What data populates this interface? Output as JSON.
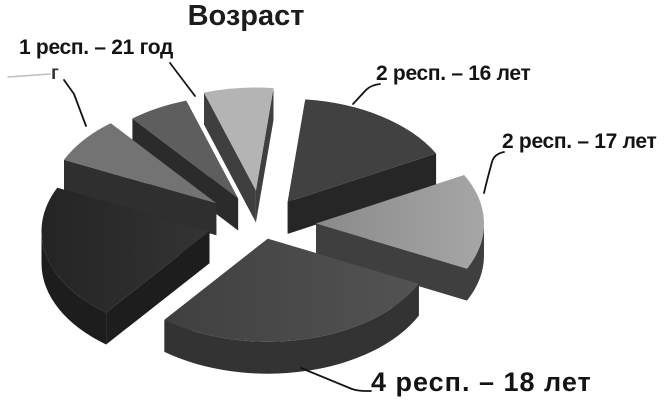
{
  "chart_data": {
    "type": "pie",
    "style": "3d-exploded-grayscale",
    "title": "Возраст",
    "legend": "none",
    "slices": [
      {
        "label": "1 респ. – 21 год",
        "value": 1,
        "color": "#b4b4b4",
        "side_color": "#3f3f3f"
      },
      {
        "label": "2 респ. – 16 лет",
        "value": 2,
        "color": "#414141",
        "side_color": "#262626"
      },
      {
        "label": "2 респ. – 17 лет",
        "value": 2,
        "color": "#9c9c9c",
        "side_color": "#3f3f3f"
      },
      {
        "label": "4 респ. – 18 лет",
        "value": 4,
        "color": "#4c4c4c",
        "side_color": "#333333"
      },
      {
        "label": "",
        "value": 3,
        "color": "#2d2d2d",
        "side_color": "#1d1d1d"
      },
      {
        "label": "",
        "value": 1,
        "color": "#737373",
        "side_color": "#2f2f2f"
      },
      {
        "label": "",
        "value": 1,
        "color": "#5e5e5e",
        "side_color": "#2b2b2b"
      }
    ],
    "erased_label_fragment": "г"
  }
}
